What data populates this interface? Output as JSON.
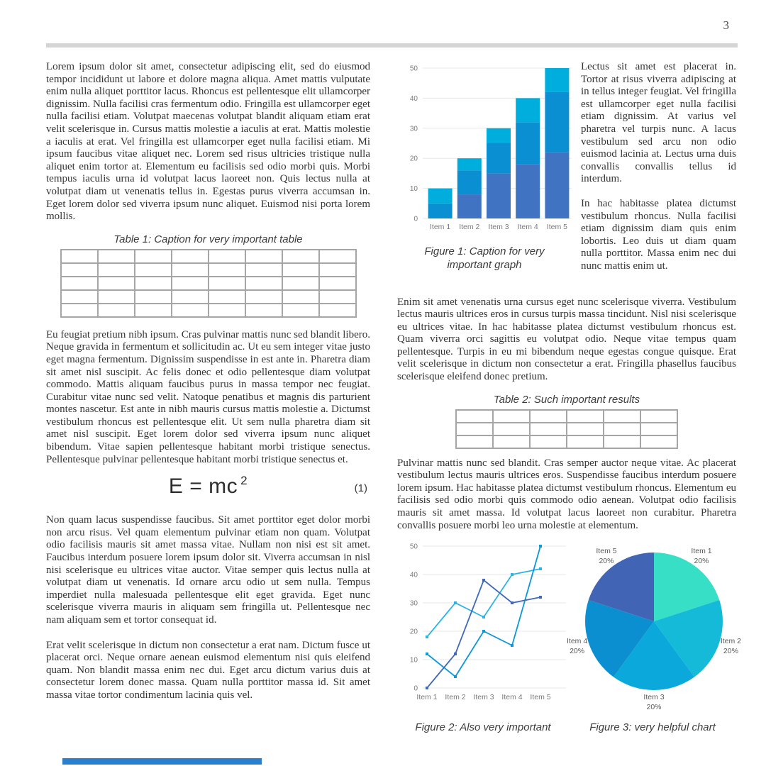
{
  "page": {
    "number": "3"
  },
  "left_column": {
    "paragraph_1": "Lorem ipsum dolor sit amet, consectetur adipiscing elit, sed do eiusmod tempor incididunt ut labore et dolore magna aliqua. Amet mattis vulputate enim nulla aliquet porttitor lacus. Rhoncus est pellentesque elit ullamcorper dignissim. Nulla facilisi cras fermentum odio. Fringilla est ullamcorper eget nulla facilisi etiam. Volutpat maecenas volutpat blandit aliquam etiam erat velit scelerisque in. Cursus mattis molestie a iaculis at erat. Mattis molestie a iaculis at erat. Vel fringilla est ullamcorper eget nulla facilisi etiam. Mi ipsum faucibus vitae aliquet nec. Lorem sed risus ultricies tristique nulla aliquet enim tortor at. Elementum eu facilisis sed odio morbi quis. Morbi tempus iaculis urna id volutpat lacus laoreet non. Quis lectus nulla at volutpat diam ut venenatis tellus in. Egestas purus viverra accumsan in. Eget lorem dolor sed viverra ipsum nunc aliquet. Euismod nisi porta lorem mollis.",
    "table1": {
      "caption": "Table 1: Caption for very important table",
      "rows": 5,
      "cols": 8
    },
    "paragraph_2": "Eu feugiat pretium nibh ipsum. Cras pulvinar mattis nunc sed blandit libero. Neque gravida in fermentum et sollicitudin ac. Ut eu sem integer vitae justo eget magna fermentum. Dignissim suspendisse in est ante in. Pharetra diam sit amet nisl suscipit. Ac felis donec et odio pellentesque diam volutpat commodo. Mattis aliquam faucibus purus in massa tempor nec feugiat. Curabitur vitae nunc sed velit. Natoque penatibus et magnis dis parturient montes nascetur. Est ante in nibh mauris cursus mattis molestie a. Dictumst vestibulum rhoncus est pellentesque elit. Ut sem nulla pharetra diam sit amet nisl suscipit. Eget lorem dolor sed viverra ipsum nunc aliquet bibendum. Vitae sapien pellentesque habitant morbi tristique senectus. Pellentesque pulvinar pellentesque habitant morbi tristique senectus et.",
    "equation": {
      "body": "E = mc",
      "exponent": "2",
      "number": "(1)"
    },
    "paragraph_3": "Non quam lacus suspendisse faucibus. Sit amet porttitor eget dolor morbi non arcu risus. Vel quam elementum pulvinar etiam non quam. Volutpat odio facilisis mauris sit amet massa vitae. Nullam non nisi est sit amet. Faucibus interdum posuere lorem ipsum dolor sit. Viverra accumsan in nisl nisi scelerisque eu ultrices vitae auctor. Vitae semper quis lectus nulla at volutpat diam ut venenatis. Id ornare arcu odio ut sem nulla. Tempus imperdiet nulla malesuada pellentesque elit eget gravida. Eget nunc scelerisque viverra mauris in aliquam sem fringilla ut. Pellentesque nec nam aliquam sem et tortor consequat id.",
    "paragraph_4": "Erat velit scelerisque in dictum non consectetur a erat nam. Dictum fusce ut placerat orci. Neque ornare aenean euismod elementum nisi quis eleifend quam. Non blandit massa enim nec dui. Eget arcu dictum varius duis at consectetur lorem donec massa. Quam nulla porttitor massa id. Sit amet massa vitae tortor condimentum lacinia quis vel."
  },
  "right_column": {
    "side_paragraph_1": "Lectus sit amet est placerat in. Tortor at risus viverra adipiscing at in tellus integer feugiat. Vel fringilla est ullamcorper eget nulla facilisi etiam dignissim. At varius vel pharetra vel turpis nunc. A lacus vestibulum sed arcu non odio euismod lacinia at. Lectus urna duis convallis convallis tellus id interdum.",
    "side_paragraph_2": "In hac habitasse platea dictumst vestibulum rhoncus. Nulla facilisi etiam dignissim diam quis enim lobortis. Leo duis ut diam quam nulla porttitor. Massa enim nec dui nunc mattis enim ut.",
    "paragraph_full_1": "Enim sit amet venenatis urna cursus eget nunc scelerisque viverra. Vestibulum lectus mauris ultrices eros in cursus turpis massa tincidunt. Nisl nisi scelerisque eu ultrices vitae. In hac habitasse platea dictumst vestibulum rhoncus est. Quam viverra orci sagittis eu volutpat odio. Neque vitae tempus quam pellentesque. Turpis in eu mi bibendum neque egestas congue quisque. Erat velit scelerisque in dictum non consectetur a erat. Fringilla phasellus faucibus scelerisque eleifend donec pretium.",
    "table2": {
      "caption": "Table 2: Such important results",
      "rows": 3,
      "cols": 6
    },
    "paragraph_full_2": "Pulvinar mattis nunc sed blandit. Cras semper auctor neque vitae. Ac placerat vestibulum lectus mauris ultrices eros. Suspendisse faucibus interdum posuere lorem ipsum. Hac habitasse platea dictumst vestibulum rhoncus. Elementum eu facilisis sed odio morbi quis commodo odio aenean. Volutpat odio facilisis mauris sit amet massa. Id volutpat lacus laoreet non curabitur. Pharetra convallis posuere morbi leo urna molestie at elementum."
  },
  "figures": {
    "figure1_caption": "Figure 1: Caption for very important graph",
    "figure2_caption": "Figure 2: Also very important",
    "figure3_caption": "Figure 3: very helpful chart"
  },
  "colors": {
    "rule": "#d5d5d5",
    "table_border": "#a6a6a6",
    "gridline": "#e7e7e7",
    "axis_label": "#7a7a7a",
    "footer_bar": "#2a80cf"
  },
  "chart_data": [
    {
      "id": "figure1",
      "type": "bar",
      "stacked": true,
      "title": "",
      "xlabel": "",
      "ylabel": "",
      "categories": [
        "Item 1",
        "Item 2",
        "Item 3",
        "Item 4",
        "Item 5"
      ],
      "series": [
        {
          "name": "series-1-bottom",
          "color": "#4173c3",
          "values": [
            0,
            8,
            15,
            18,
            22
          ]
        },
        {
          "name": "series-2-middle",
          "color": "#0a8fd3",
          "values": [
            5,
            8,
            10,
            14,
            20
          ]
        },
        {
          "name": "series-3-top",
          "color": "#00aede",
          "values": [
            5,
            4,
            5,
            8,
            8
          ]
        }
      ],
      "ylim": [
        0,
        50
      ],
      "yticks": [
        0,
        10,
        20,
        30,
        40,
        50
      ],
      "grid": true,
      "legend": "none",
      "caption": "Figure 1: Caption for very important graph"
    },
    {
      "id": "figure2",
      "type": "line",
      "title": "",
      "xlabel": "",
      "ylabel": "",
      "categories": [
        "Item 1",
        "Item 2",
        "Item 3",
        "Item 4",
        "Item 5"
      ],
      "series": [
        {
          "name": "line-cyan",
          "color": "#2ab4e4",
          "values": [
            18,
            30,
            25,
            40,
            42
          ]
        },
        {
          "name": "line-blue",
          "color": "#0d97d9",
          "values": [
            12,
            4,
            20,
            15,
            50
          ]
        },
        {
          "name": "line-slate",
          "color": "#4068bd",
          "values": [
            0,
            12,
            38,
            30,
            32
          ]
        }
      ],
      "ylim": [
        0,
        50
      ],
      "yticks": [
        0,
        10,
        20,
        30,
        40,
        50
      ],
      "grid": true,
      "legend": "none",
      "caption": "Figure 2: Also very important"
    },
    {
      "id": "figure3",
      "type": "pie",
      "title": "",
      "slices": [
        {
          "label": "Item 1",
          "pct": "20%",
          "value": 20,
          "color": "#36dfc5"
        },
        {
          "label": "Item 2",
          "pct": "20%",
          "value": 20,
          "color": "#14bad7"
        },
        {
          "label": "Item 3",
          "pct": "20%",
          "value": 20,
          "color": "#0aa8db"
        },
        {
          "label": "Item 4",
          "pct": "20%",
          "value": 20,
          "color": "#0b8fd0"
        },
        {
          "label": "Item 5",
          "pct": "20%",
          "value": 20,
          "color": "#4165b4"
        }
      ],
      "start_angle_deg": 0,
      "direction": "clockwise",
      "legend": "none",
      "caption": "Figure 3: very helpful chart"
    }
  ]
}
